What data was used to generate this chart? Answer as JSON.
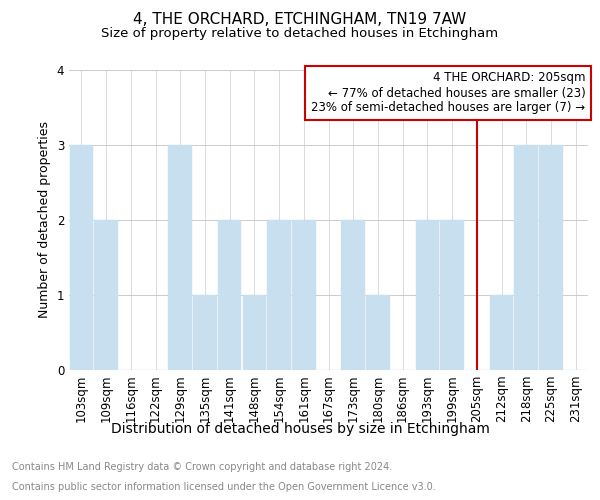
{
  "title": "4, THE ORCHARD, ETCHINGHAM, TN19 7AW",
  "subtitle": "Size of property relative to detached houses in Etchingham",
  "xlabel": "Distribution of detached houses by size in Etchingham",
  "ylabel": "Number of detached properties",
  "categories": [
    "103sqm",
    "109sqm",
    "116sqm",
    "122sqm",
    "129sqm",
    "135sqm",
    "141sqm",
    "148sqm",
    "154sqm",
    "161sqm",
    "167sqm",
    "173sqm",
    "180sqm",
    "186sqm",
    "193sqm",
    "199sqm",
    "205sqm",
    "212sqm",
    "218sqm",
    "225sqm",
    "231sqm"
  ],
  "values": [
    3,
    2,
    0,
    0,
    3,
    1,
    2,
    1,
    2,
    2,
    0,
    2,
    1,
    0,
    2,
    2,
    0,
    1,
    3,
    3,
    0
  ],
  "bar_color": "#c8dff0",
  "bar_edgecolor": "#c8dff0",
  "marker_index": 16,
  "marker_color": "#cc0000",
  "annotation_line1": "4 THE ORCHARD: 205sqm",
  "annotation_line2": "← 77% of detached houses are smaller (23)",
  "annotation_line3": "23% of semi-detached houses are larger (7) →",
  "ylim": [
    0,
    4
  ],
  "yticks": [
    0,
    1,
    2,
    3,
    4
  ],
  "footer_line1": "Contains HM Land Registry data © Crown copyright and database right 2024.",
  "footer_line2": "Contains public sector information licensed under the Open Government Licence v3.0.",
  "bg_color": "#ffffff",
  "grid_color": "#cccccc",
  "title_fontsize": 11,
  "subtitle_fontsize": 9.5,
  "xlabel_fontsize": 10,
  "ylabel_fontsize": 9,
  "tick_fontsize": 8.5,
  "annotation_fontsize": 8.5,
  "footer_fontsize": 7
}
